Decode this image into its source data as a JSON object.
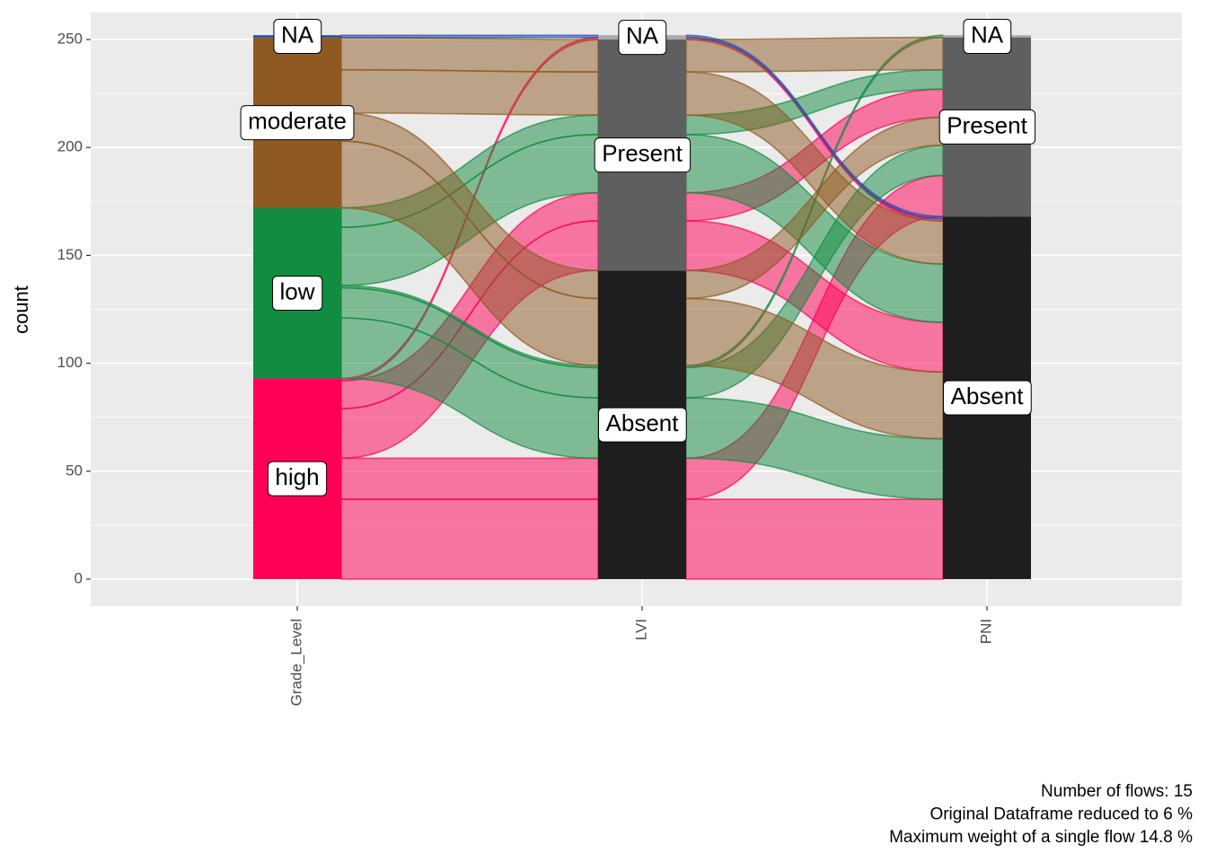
{
  "chart_data": {
    "type": "alluvial",
    "y_label": "count",
    "ylim": [
      -12.5,
      262.5
    ],
    "yticks": [
      0,
      50,
      100,
      150,
      200,
      250
    ],
    "grid": true,
    "axes": [
      {
        "name": "Grade_Level",
        "strata": [
          {
            "name": "high",
            "color": "#ff0055"
          },
          {
            "name": "low",
            "color": "#128c40"
          },
          {
            "name": "moderate",
            "color": "#8e5a22"
          },
          {
            "name": "NA",
            "color": "#1f4fa8"
          }
        ]
      },
      {
        "name": "LVI",
        "strata": [
          {
            "name": "Absent",
            "color": "#1e1e1e"
          },
          {
            "name": "Present",
            "color": "#5f5f5f"
          },
          {
            "name": "NA",
            "color": "#a9a9a9"
          }
        ]
      },
      {
        "name": "PNI",
        "strata": [
          {
            "name": "Absent",
            "color": "#1e1e1e"
          },
          {
            "name": "Present",
            "color": "#5f5f5f"
          },
          {
            "name": "NA",
            "color": "#a9a9a9"
          }
        ]
      }
    ],
    "flows": [
      {
        "strata": [
          "high",
          "Absent",
          "Absent"
        ],
        "value": 37
      },
      {
        "strata": [
          "high",
          "Absent",
          "Present"
        ],
        "value": 19
      },
      {
        "strata": [
          "high",
          "Present",
          "Absent"
        ],
        "value": 23
      },
      {
        "strata": [
          "high",
          "Present",
          "Present"
        ],
        "value": 13
      },
      {
        "strata": [
          "high",
          "NA",
          "Absent"
        ],
        "value": 1
      },
      {
        "strata": [
          "low",
          "Absent",
          "Absent"
        ],
        "value": 28
      },
      {
        "strata": [
          "low",
          "Absent",
          "Present"
        ],
        "value": 14
      },
      {
        "strata": [
          "low",
          "Absent",
          "NA"
        ],
        "value": 1
      },
      {
        "strata": [
          "low",
          "Present",
          "Absent"
        ],
        "value": 27
      },
      {
        "strata": [
          "low",
          "Present",
          "Present"
        ],
        "value": 9
      },
      {
        "strata": [
          "moderate",
          "Absent",
          "Absent"
        ],
        "value": 31
      },
      {
        "strata": [
          "moderate",
          "Absent",
          "Present"
        ],
        "value": 13
      },
      {
        "strata": [
          "moderate",
          "Present",
          "Absent"
        ],
        "value": 20
      },
      {
        "strata": [
          "moderate",
          "Present",
          "Present"
        ],
        "value": 15
      },
      {
        "strata": [
          "NA",
          "NA",
          "Absent"
        ],
        "value": 1
      }
    ],
    "caption": [
      "Number of flows: 15",
      "Original Dataframe reduced to 6 %",
      "Maximum weight of a single flow 14.8 %"
    ]
  }
}
